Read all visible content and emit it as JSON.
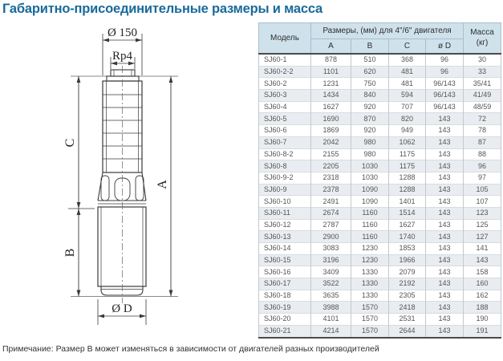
{
  "page": {
    "title": "Габаритно-присоединительные размеры и масса",
    "note": "Примечание: Размер В может изменяться в зависимости от двигателей разных производителей"
  },
  "drawing": {
    "labels": {
      "top_diameter": "Ø 150",
      "thread": "Rp4",
      "dim_c": "C",
      "dim_b": "B",
      "dim_a": "A",
      "bottom_diameter": "Ø D"
    }
  },
  "table": {
    "header": {
      "model": "Модель",
      "dims_group": "Размеры, (мм) для 4\"/6\" двигателя",
      "dim_cols": [
        "A",
        "B",
        "C",
        "ø D"
      ],
      "mass_label": "Масса",
      "mass_unit": "(кг)"
    },
    "rows": [
      [
        "SJ60-1",
        "878",
        "510",
        "368",
        "96",
        "30"
      ],
      [
        "SJ60-2-2",
        "1101",
        "620",
        "481",
        "96",
        "33"
      ],
      [
        "SJ60-2",
        "1231",
        "750",
        "481",
        "96/143",
        "35/41"
      ],
      [
        "SJ60-3",
        "1434",
        "840",
        "594",
        "96/143",
        "41/49"
      ],
      [
        "SJ60-4",
        "1627",
        "920",
        "707",
        "96/143",
        "48/59"
      ],
      [
        "SJ60-5",
        "1690",
        "870",
        "820",
        "143",
        "72"
      ],
      [
        "SJ60-6",
        "1869",
        "920",
        "949",
        "143",
        "78"
      ],
      [
        "SJ60-7",
        "2042",
        "980",
        "1062",
        "143",
        "87"
      ],
      [
        "SJ60-8-2",
        "2155",
        "980",
        "1175",
        "143",
        "88"
      ],
      [
        "SJ60-8",
        "2205",
        "1030",
        "1175",
        "143",
        "96"
      ],
      [
        "SJ60-9-2",
        "2318",
        "1030",
        "1288",
        "143",
        "97"
      ],
      [
        "SJ60-9",
        "2378",
        "1090",
        "1288",
        "143",
        "105"
      ],
      [
        "SJ60-10",
        "2491",
        "1090",
        "1401",
        "143",
        "107"
      ],
      [
        "SJ60-11",
        "2674",
        "1160",
        "1514",
        "143",
        "123"
      ],
      [
        "SJ60-12",
        "2787",
        "1160",
        "1627",
        "143",
        "125"
      ],
      [
        "SJ60-13",
        "2900",
        "1160",
        "1740",
        "143",
        "127"
      ],
      [
        "SJ60-14",
        "3083",
        "1230",
        "1853",
        "143",
        "141"
      ],
      [
        "SJ60-15",
        "3196",
        "1230",
        "1966",
        "143",
        "143"
      ],
      [
        "SJ60-16",
        "3409",
        "1330",
        "2079",
        "143",
        "158"
      ],
      [
        "SJ60-17",
        "3522",
        "1330",
        "2192",
        "143",
        "160"
      ],
      [
        "SJ60-18",
        "3635",
        "1330",
        "2305",
        "143",
        "162"
      ],
      [
        "SJ60-19",
        "3988",
        "1570",
        "2418",
        "143",
        "188"
      ],
      [
        "SJ60-20",
        "4101",
        "1570",
        "2531",
        "143",
        "190"
      ],
      [
        "SJ60-21",
        "4214",
        "1570",
        "2644",
        "143",
        "191"
      ]
    ]
  },
  "colors": {
    "title": "#1a6a9a",
    "header_bg": "#cfe2ec",
    "row_alt_bg": "#e9edf1"
  }
}
